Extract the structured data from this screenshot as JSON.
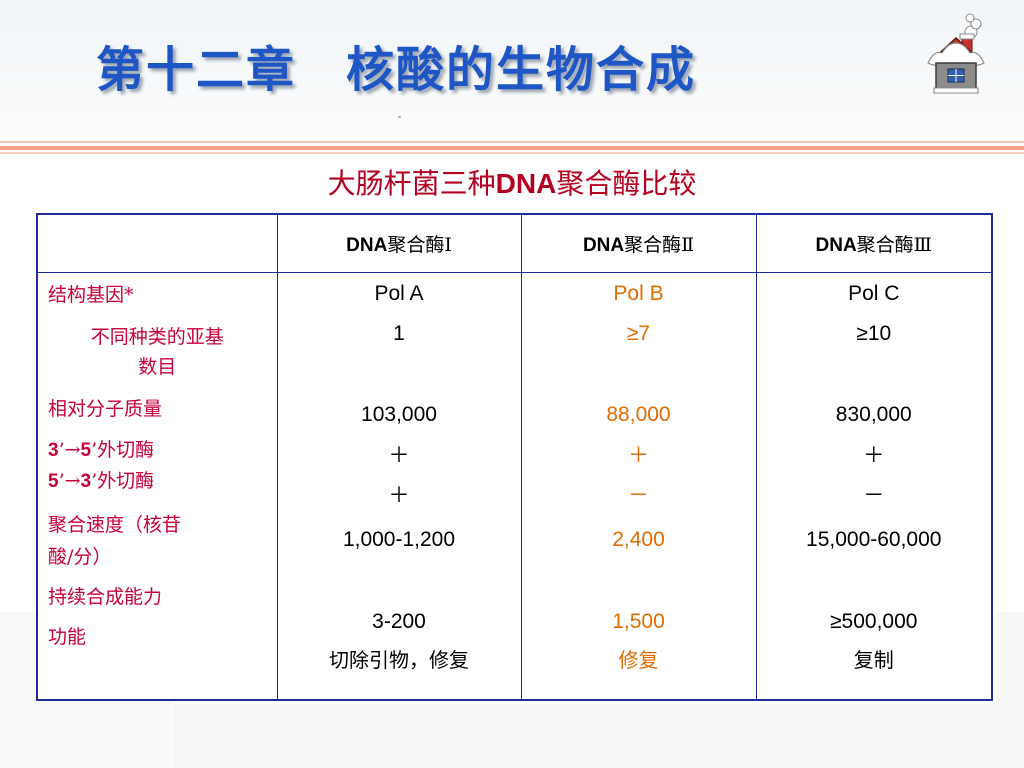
{
  "title": "第十二章　核酸的生物合成",
  "subtitle": {
    "zh_prefix": "大肠杆菌三种",
    "latin": "DNA",
    "zh_suffix": "聚合酶比较"
  },
  "table": {
    "headers": [
      {
        "latin": "",
        "zh": ""
      },
      {
        "latin": "DNA",
        "zh": "聚合酶Ⅰ"
      },
      {
        "latin": "DNA",
        "zh": "聚合酶Ⅱ"
      },
      {
        "latin": "DNA",
        "zh": "聚合酶Ⅲ"
      }
    ],
    "row_labels": {
      "structural_gene": "结构基因*",
      "subunit_types_1": "不同种类的亚基",
      "subunit_types_2": "数目",
      "molecular_weight": "相对分子质量",
      "exo_35_num1": "3",
      "exo_35_mid": "’→",
      "exo_35_num2": "5",
      "exo_35_suffix": "’外切酶",
      "exo_53_num1": "5",
      "exo_53_mid": "’→",
      "exo_53_num2": "3",
      "exo_53_suffix": "’外切酶",
      "rate_1": "聚合速度（核苷",
      "rate_2": "酸/分）",
      "processivity": "持续合成能力",
      "function": "功能"
    },
    "columns": [
      {
        "structural_gene": "Pol A",
        "subunits": "1",
        "molecular_weight": "103,000",
        "exo_35": "＋",
        "exo_53": "＋",
        "rate": "1,000-1,200",
        "processivity": "3-200",
        "function": "切除引物，修复"
      },
      {
        "structural_gene": "Pol B",
        "subunits": "≥7",
        "molecular_weight": "88,000",
        "exo_35": "＋",
        "exo_53": "－",
        "rate": "2,400",
        "processivity": "1,500",
        "function": "修复"
      },
      {
        "structural_gene": "Pol C",
        "subunits": "≥10",
        "molecular_weight": "830,000",
        "exo_35": "＋",
        "exo_53": "－",
        "rate": "15,000-60,000",
        "processivity": "≥500,000",
        "function": "复制"
      }
    ]
  },
  "colors": {
    "title": "#1f56c6",
    "subtitle": "#b40020",
    "row_label": "#c8003a",
    "pol_b_values": "#e06c00",
    "table_border": "#1f2d9c"
  },
  "icons": {
    "corner": "snowy-house-icon"
  }
}
